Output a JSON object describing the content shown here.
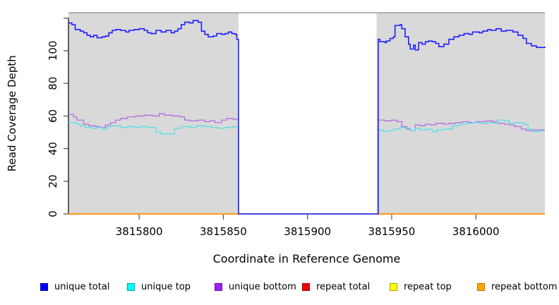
{
  "figure": {
    "y_axis_title": "Read Coverage Depth",
    "x_axis_title": "Coordinate in Reference Genome"
  },
  "legend": {
    "items": [
      {
        "label": "unique total",
        "color": "#0000ff",
        "border": "#0000a8"
      },
      {
        "label": "unique top",
        "color": "#00ffff",
        "border": "#00a0a8"
      },
      {
        "label": "unique bottom",
        "color": "#a020f0",
        "border": "#6c14a8"
      },
      {
        "label": "repeat total",
        "color": "#ee0000",
        "border": "#a80000"
      },
      {
        "label": "repeat top",
        "color": "#ffff00",
        "border": "#a8a800"
      },
      {
        "label": "repeat bottom",
        "color": "#ffa500",
        "border": "#b47400"
      }
    ]
  },
  "chart_data": {
    "type": "line",
    "title": "",
    "xlabel": "Coordinate in Reference Genome",
    "ylabel": "Read Coverage Depth",
    "xlim": [
      3815758,
      3816041
    ],
    "ylim": [
      0,
      123.3
    ],
    "x_ticks": [
      3815800,
      3815850,
      3815900,
      3815950,
      3816000
    ],
    "y_ticks": [
      {
        "value": 0,
        "label": "0"
      },
      {
        "value": 20,
        "label": "20"
      },
      {
        "value": 40,
        "label": "40"
      },
      {
        "value": 60,
        "label": "60"
      },
      {
        "value": 80,
        "label": "80"
      },
      {
        "value": 100,
        "label": "100"
      },
      {
        "value": 120,
        "label": ""
      }
    ],
    "plot_background": "#d9d9d9",
    "top_border_color": "#8c8c8c",
    "axis_color": "#000000",
    "tick_color": "#4d4d4d",
    "uncovered_region": {
      "x1": 3815859,
      "x2": 3815941,
      "fill": "#ffffff"
    },
    "grid": false,
    "legend_position": "bottom",
    "series": [
      {
        "name": "repeat total",
        "color": "#ee0000",
        "width": 1.5,
        "paths": [
          [
            [
              3815758,
              0
            ],
            [
              3816041,
              0
            ]
          ]
        ]
      },
      {
        "name": "repeat top",
        "color": "#ffff00",
        "width": 1.5,
        "paths": [
          [
            [
              3815758,
              0
            ],
            [
              3816041,
              0
            ]
          ]
        ]
      },
      {
        "name": "repeat bottom",
        "color": "#ff9d20",
        "width": 2.2,
        "paths": [
          [
            [
              3815758,
              0
            ],
            [
              3815859,
              0
            ]
          ],
          [
            [
              3815941,
              0
            ],
            [
              3816041,
              0
            ]
          ]
        ]
      },
      {
        "name": "unique bottom",
        "color": "#b36fe0",
        "width": 1.3,
        "paths": [
          [
            [
              3815758,
              61
            ],
            [
              3815761,
              59.5
            ],
            [
              3815763,
              57.5
            ],
            [
              3815767,
              55
            ],
            [
              3815770,
              54
            ],
            [
              3815774,
              53.5
            ],
            [
              3815777,
              53
            ],
            [
              3815780,
              54.5
            ],
            [
              3815783,
              56
            ],
            [
              3815786,
              57.5
            ],
            [
              3815789,
              58.5
            ],
            [
              3815793,
              59.5
            ],
            [
              3815798,
              60
            ],
            [
              3815803,
              60.5
            ],
            [
              3815808,
              60
            ],
            [
              3815812,
              61.5
            ],
            [
              3815815,
              60.5
            ],
            [
              3815820,
              60
            ],
            [
              3815824,
              59.5
            ],
            [
              3815827,
              57.5
            ],
            [
              3815830,
              57
            ],
            [
              3815835,
              57.5
            ],
            [
              3815839,
              56.5
            ],
            [
              3815842,
              57
            ],
            [
              3815845,
              56
            ],
            [
              3815849,
              57.5
            ],
            [
              3815852,
              58.5
            ],
            [
              3815856,
              58
            ],
            [
              3815859,
              0
            ],
            [
              3815941,
              0
            ],
            [
              3815942,
              57.5
            ],
            [
              3815946,
              57
            ],
            [
              3815950,
              57.5
            ],
            [
              3815953,
              56.5
            ],
            [
              3815956,
              53.5
            ],
            [
              3815959,
              52
            ],
            [
              3815961,
              51
            ],
            [
              3815964,
              54.5
            ],
            [
              3815967,
              54
            ],
            [
              3815970,
              55
            ],
            [
              3815973,
              54.5
            ],
            [
              3815976,
              55.5
            ],
            [
              3815981,
              55
            ],
            [
              3815984,
              55.5
            ],
            [
              3815988,
              56
            ],
            [
              3815992,
              56.5
            ],
            [
              3815996,
              56
            ],
            [
              3816000,
              56.5
            ],
            [
              3816006,
              57
            ],
            [
              3816010,
              56.5
            ],
            [
              3816013,
              55.5
            ],
            [
              3816017,
              55
            ],
            [
              3816020,
              54.5
            ],
            [
              3816023,
              53.5
            ],
            [
              3816027,
              52
            ],
            [
              3816030,
              51
            ],
            [
              3816034,
              51.5
            ],
            [
              3816041,
              51.5
            ]
          ]
        ]
      },
      {
        "name": "unique top",
        "color": "#55dfe6",
        "width": 1.3,
        "paths": [
          [
            [
              3815758,
              56
            ],
            [
              3815763,
              55
            ],
            [
              3815765,
              54
            ],
            [
              3815768,
              53
            ],
            [
              3815772,
              52.5
            ],
            [
              3815775,
              53
            ],
            [
              3815778,
              52
            ],
            [
              3815781,
              53.5
            ],
            [
              3815784,
              54
            ],
            [
              3815789,
              53
            ],
            [
              3815793,
              53.5
            ],
            [
              3815797,
              53
            ],
            [
              3815801,
              53.5
            ],
            [
              3815805,
              53
            ],
            [
              3815810,
              50
            ],
            [
              3815813,
              49
            ],
            [
              3815821,
              52.5
            ],
            [
              3815825,
              53.5
            ],
            [
              3815830,
              53
            ],
            [
              3815834,
              54
            ],
            [
              3815839,
              53.5
            ],
            [
              3815843,
              53
            ],
            [
              3815847,
              52.5
            ],
            [
              3815851,
              53
            ],
            [
              3815856,
              53.5
            ],
            [
              3815859,
              0
            ],
            [
              3815941,
              0
            ],
            [
              3815942,
              51.5
            ],
            [
              3815945,
              50.5
            ],
            [
              3815948,
              51
            ],
            [
              3815951,
              52
            ],
            [
              3815955,
              53
            ],
            [
              3815958,
              52.5
            ],
            [
              3815961,
              51
            ],
            [
              3815964,
              52.5
            ],
            [
              3815967,
              51.5
            ],
            [
              3815971,
              52
            ],
            [
              3815974,
              50.5
            ],
            [
              3815977,
              51.5
            ],
            [
              3815981,
              52
            ],
            [
              3815986,
              54
            ],
            [
              3815990,
              55
            ],
            [
              3815994,
              55.5
            ],
            [
              3815998,
              56
            ],
            [
              3816002,
              55.5
            ],
            [
              3816007,
              56
            ],
            [
              3816011,
              55.5
            ],
            [
              3816013,
              57.5
            ],
            [
              3816017,
              57
            ],
            [
              3816020,
              55.5
            ],
            [
              3816023,
              56
            ],
            [
              3816028,
              55
            ],
            [
              3816031,
              52
            ],
            [
              3816034,
              50.5
            ],
            [
              3816038,
              51
            ],
            [
              3816041,
              51
            ]
          ]
        ]
      },
      {
        "name": "unique total",
        "color": "#1f1fff",
        "width": 1.6,
        "paths": [
          [
            [
              3815758,
              117
            ],
            [
              3815760,
              116
            ],
            [
              3815762,
              113
            ],
            [
              3815765,
              112
            ],
            [
              3815767,
              111
            ],
            [
              3815769,
              109.5
            ],
            [
              3815771,
              108.5
            ],
            [
              3815773,
              109.5
            ],
            [
              3815775,
              108
            ],
            [
              3815778,
              108.5
            ],
            [
              3815780,
              109
            ],
            [
              3815782,
              111
            ],
            [
              3815784,
              112.5
            ],
            [
              3815786,
              113
            ],
            [
              3815789,
              112.5
            ],
            [
              3815792,
              111.5
            ],
            [
              3815794,
              112.5
            ],
            [
              3815797,
              113
            ],
            [
              3815800,
              113.5
            ],
            [
              3815803,
              112.5
            ],
            [
              3815805,
              111
            ],
            [
              3815807,
              110.5
            ],
            [
              3815810,
              112.5
            ],
            [
              3815813,
              111.5
            ],
            [
              3815816,
              112.5
            ],
            [
              3815819,
              111
            ],
            [
              3815821,
              112
            ],
            [
              3815823,
              113.5
            ],
            [
              3815825,
              116
            ],
            [
              3815827,
              117.5
            ],
            [
              3815830,
              117
            ],
            [
              3815832,
              118.5
            ],
            [
              3815835,
              117.5
            ],
            [
              3815837,
              112
            ],
            [
              3815839,
              110
            ],
            [
              3815841,
              108.5
            ],
            [
              3815844,
              109
            ],
            [
              3815846,
              110.5
            ],
            [
              3815849,
              110
            ],
            [
              3815851,
              110.5
            ],
            [
              3815853,
              111.5
            ],
            [
              3815855,
              110.5
            ],
            [
              3815857,
              110
            ],
            [
              3815858,
              107
            ],
            [
              3815859,
              0
            ],
            [
              3815941,
              0
            ],
            [
              3815942,
              107
            ],
            [
              3815943,
              105.5
            ],
            [
              3815946,
              105
            ],
            [
              3815947,
              106
            ],
            [
              3815949,
              107.5
            ],
            [
              3815951,
              108.5
            ],
            [
              3815952,
              115.5
            ],
            [
              3815955,
              116
            ],
            [
              3815956,
              113.5
            ],
            [
              3815958,
              108.5
            ],
            [
              3815960,
              104
            ],
            [
              3815961,
              101
            ],
            [
              3815963,
              103.5
            ],
            [
              3815964,
              100.5
            ],
            [
              3815966,
              105
            ],
            [
              3815968,
              104
            ],
            [
              3815970,
              105.5
            ],
            [
              3815972,
              106
            ],
            [
              3815974,
              105.5
            ],
            [
              3815976,
              104.5
            ],
            [
              3815978,
              102.5
            ],
            [
              3815981,
              104
            ],
            [
              3815984,
              107
            ],
            [
              3815987,
              108.5
            ],
            [
              3815990,
              109.5
            ],
            [
              3815993,
              110.5
            ],
            [
              3815996,
              110
            ],
            [
              3815998,
              111.5
            ],
            [
              3816002,
              111
            ],
            [
              3816004,
              112
            ],
            [
              3816007,
              113
            ],
            [
              3816009,
              112.5
            ],
            [
              3816012,
              113.5
            ],
            [
              3816015,
              112
            ],
            [
              3816018,
              112.5
            ],
            [
              3816022,
              111.5
            ],
            [
              3816025,
              109.5
            ],
            [
              3816028,
              107.5
            ],
            [
              3816030,
              104.5
            ],
            [
              3816033,
              103
            ],
            [
              3816036,
              102
            ],
            [
              3816041,
              102.5
            ]
          ]
        ]
      }
    ]
  },
  "layout_note": ""
}
